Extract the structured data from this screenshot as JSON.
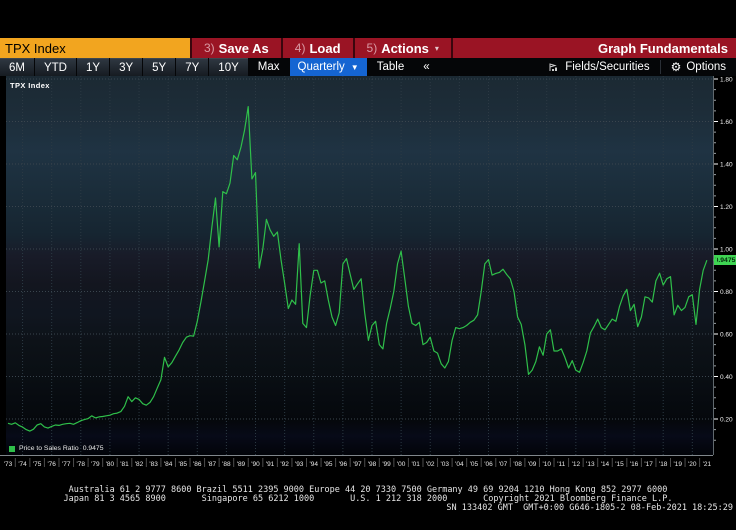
{
  "command_bar": {
    "security": "TPX Index",
    "save_as": {
      "key": "3)",
      "label": "Save As"
    },
    "load": {
      "key": "4)",
      "label": "Load"
    },
    "actions": {
      "key": "5)",
      "label": "Actions",
      "caret": "▾"
    },
    "title": "Graph Fundamentals"
  },
  "toolbar": {
    "periods": [
      "6M",
      "YTD",
      "1Y",
      "3Y",
      "5Y",
      "7Y",
      "10Y",
      "Max"
    ],
    "frequency": "Quarterly",
    "frequency_caret": "▼",
    "table_label": "Table",
    "collapse_label": "«",
    "fields_label": "Fields/Securities",
    "options_label": "Options",
    "options_gear": "⚙"
  },
  "chart": {
    "security_label": "TPX Index",
    "legend": {
      "label": "Price to Sales Ratio",
      "value": "0.9475"
    },
    "last_value": "0.9475",
    "y_ticks": [
      "1.80",
      "1.60",
      "1.40",
      "1.20",
      "1.00",
      "0.80",
      "0.60",
      "0.40",
      "0.20"
    ]
  },
  "chart_data": {
    "type": "line",
    "title": "TPX Index Price to Sales Ratio, quarterly",
    "series_name": "Price to Sales Ratio",
    "frequency": "Quarterly",
    "x_start": 1973,
    "x_step": 0.25,
    "x_labels": [
      "'73",
      "'74",
      "'75",
      "'76",
      "'77",
      "'78",
      "'79",
      "'80",
      "'81",
      "'82",
      "'83",
      "'84",
      "'85",
      "'86",
      "'87",
      "'88",
      "'89",
      "'90",
      "'91",
      "'92",
      "'93",
      "'94",
      "'95",
      "'96",
      "'97",
      "'98",
      "'99",
      "'00",
      "'01",
      "'02",
      "'03",
      "'04",
      "'05",
      "'06",
      "'07",
      "'08",
      "'09",
      "'10",
      "'11",
      "'12",
      "'13",
      "'14",
      "'15",
      "'16",
      "'17",
      "'18",
      "'19",
      "'20",
      "'21"
    ],
    "ylim": [
      0.03,
      1.82
    ],
    "y_major_ticks": [
      0.2,
      0.4,
      0.6,
      0.8,
      1.0,
      1.2,
      1.4,
      1.6,
      1.8
    ],
    "grid": true,
    "last_value": 0.9475,
    "values": [
      0.18,
      0.175,
      0.182,
      0.17,
      0.162,
      0.15,
      0.143,
      0.152,
      0.172,
      0.178,
      0.163,
      0.157,
      0.165,
      0.172,
      0.17,
      0.175,
      0.178,
      0.18,
      0.175,
      0.183,
      0.192,
      0.197,
      0.202,
      0.215,
      0.205,
      0.21,
      0.212,
      0.215,
      0.218,
      0.225,
      0.228,
      0.235,
      0.26,
      0.305,
      0.282,
      0.3,
      0.292,
      0.272,
      0.265,
      0.278,
      0.305,
      0.345,
      0.385,
      0.49,
      0.445,
      0.465,
      0.495,
      0.525,
      0.56,
      0.585,
      0.592,
      0.59,
      0.66,
      0.75,
      0.85,
      0.95,
      1.1,
      1.24,
      1.01,
      1.27,
      1.26,
      1.31,
      1.44,
      1.42,
      1.48,
      1.56,
      1.67,
      1.33,
      1.36,
      0.91,
      1.0,
      1.14,
      1.09,
      1.06,
      1.08,
      0.95,
      0.84,
      0.72,
      0.76,
      0.74,
      1.025,
      0.65,
      0.63,
      0.78,
      0.9,
      0.9,
      0.84,
      0.85,
      0.76,
      0.68,
      0.64,
      0.7,
      0.93,
      0.955,
      0.88,
      0.81,
      0.835,
      0.86,
      0.7,
      0.57,
      0.64,
      0.66,
      0.55,
      0.53,
      0.65,
      0.72,
      0.8,
      0.93,
      0.99,
      0.86,
      0.73,
      0.65,
      0.64,
      0.655,
      0.55,
      0.56,
      0.585,
      0.52,
      0.51,
      0.46,
      0.44,
      0.47,
      0.57,
      0.63,
      0.625,
      0.63,
      0.64,
      0.655,
      0.665,
      0.69,
      0.8,
      0.93,
      0.95,
      0.877,
      0.885,
      0.89,
      0.905,
      0.88,
      0.86,
      0.8,
      0.68,
      0.645,
      0.55,
      0.41,
      0.43,
      0.47,
      0.54,
      0.5,
      0.6,
      0.62,
      0.52,
      0.52,
      0.53,
      0.49,
      0.44,
      0.475,
      0.43,
      0.42,
      0.465,
      0.52,
      0.605,
      0.635,
      0.67,
      0.63,
      0.62,
      0.645,
      0.67,
      0.66,
      0.73,
      0.78,
      0.81,
      0.71,
      0.74,
      0.635,
      0.68,
      0.775,
      0.77,
      0.75,
      0.85,
      0.886,
      0.83,
      0.86,
      0.87,
      0.69,
      0.735,
      0.71,
      0.725,
      0.775,
      0.785,
      0.645,
      0.81,
      0.9,
      0.9475
    ]
  },
  "footer": {
    "line1": "Australia 61 2 9777 8600 Brazil 5511 2395 9000 Europe 44 20 7330 7500 Germany 49 69 9204 1210 Hong Kong 852 2977 6000",
    "line2": "Japan 81 3 4565 8900       Singapore 65 6212 1000       U.S. 1 212 318 2000       Copyright 2021 Bloomberg Finance L.P.",
    "line3": "SN 133402 GMT  GMT+0:00 G646-1805-2 08-Feb-2021 18:25:29"
  },
  "colors": {
    "bar_red": "#8f1322",
    "input_orange": "#f2a51f",
    "freq_blue": "#1565d2",
    "line_green": "#2fbf4a",
    "label_green": "#3fd553",
    "plot_gradient": [
      [
        0.0,
        "#1b2933"
      ],
      [
        0.1,
        "#1d2d39"
      ],
      [
        0.2,
        "#1f3343"
      ],
      [
        0.32,
        "#1a2c39"
      ],
      [
        0.42,
        "#162531"
      ],
      [
        0.475,
        "#181b28"
      ],
      [
        0.55,
        "#13161f"
      ],
      [
        0.63,
        "#101620"
      ],
      [
        0.7,
        "#0d1218"
      ],
      [
        0.78,
        "#0a0f14"
      ],
      [
        0.85,
        "#070b10"
      ],
      [
        0.91,
        "#05080c"
      ],
      [
        0.95,
        "#070a18"
      ],
      [
        1.0,
        "#020409"
      ]
    ]
  }
}
